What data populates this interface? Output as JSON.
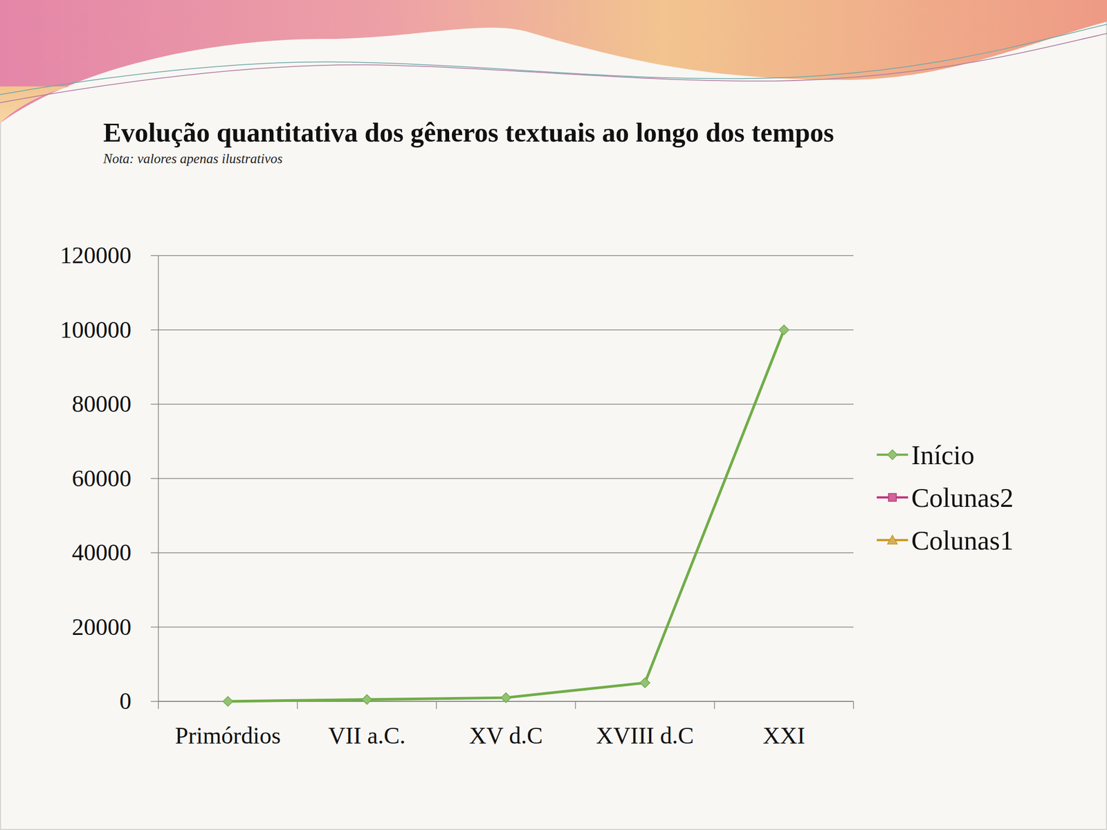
{
  "chart_data": {
    "type": "line",
    "title": "Evolução quantitativa dos gêneros textuais ao longo dos tempos",
    "subtitle": "Nota: valores apenas ilustrativos",
    "categories": [
      "Primórdios",
      "VII a.C.",
      "XV d.C",
      "XVIII d.C",
      "XXI"
    ],
    "series": [
      {
        "name": "Início",
        "color": "#70ad47",
        "marker": "diamond",
        "values": [
          0,
          500,
          1000,
          5000,
          100000
        ]
      },
      {
        "name": "Colunas2",
        "color": "#c0307a",
        "marker": "square",
        "values": [
          null,
          null,
          null,
          null,
          null
        ]
      },
      {
        "name": "Colunas1",
        "color": "#c8961e",
        "marker": "triangle",
        "values": [
          null,
          null,
          null,
          null,
          null
        ]
      }
    ],
    "ylim": [
      0,
      120000
    ],
    "yticks": [
      0,
      20000,
      40000,
      60000,
      80000,
      100000,
      120000
    ],
    "grid": true,
    "legend": "right"
  }
}
